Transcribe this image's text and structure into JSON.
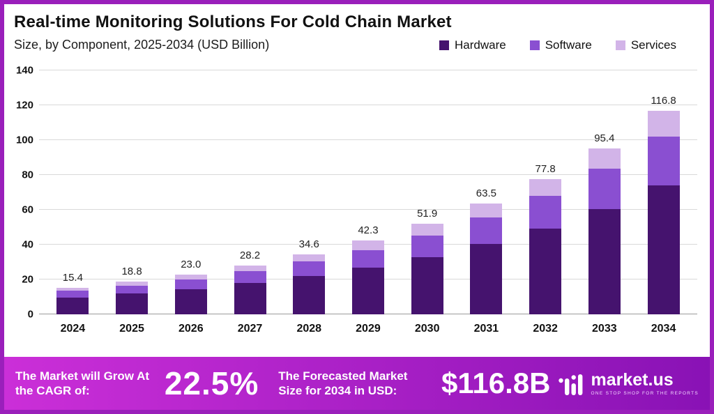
{
  "chart_data": {
    "type": "bar",
    "stacked": true,
    "title": "Real-time Monitoring Solutions For Cold Chain Market",
    "subtitle": "Size, by Component, 2025-2034 (USD Billion)",
    "categories": [
      "2024",
      "2025",
      "2026",
      "2027",
      "2028",
      "2029",
      "2030",
      "2031",
      "2032",
      "2033",
      "2034"
    ],
    "totals": [
      15.4,
      18.8,
      23.0,
      28.2,
      34.6,
      42.3,
      51.9,
      63.5,
      77.8,
      95.4,
      116.8
    ],
    "series": [
      {
        "name": "Hardware",
        "color": "#45136e",
        "values": [
          9.8,
          11.9,
          14.6,
          17.9,
          22.0,
          26.9,
          33.0,
          40.3,
          49.4,
          60.6,
          74.2
        ]
      },
      {
        "name": "Software",
        "color": "#8a4fd1",
        "values": [
          3.7,
          4.5,
          5.5,
          6.8,
          8.3,
          10.1,
          12.4,
          15.2,
          18.7,
          22.9,
          28.0
        ]
      },
      {
        "name": "Services",
        "color": "#d2b4e8",
        "values": [
          1.9,
          2.4,
          2.9,
          3.5,
          4.3,
          5.3,
          6.5,
          8.0,
          9.7,
          11.9,
          14.6
        ]
      }
    ],
    "ylim": [
      0,
      140
    ],
    "yticks": [
      0,
      20,
      40,
      60,
      80,
      100,
      120,
      140
    ],
    "grid": true,
    "legend_position": "top-right",
    "value_labels": "stack totals shown above each bar"
  },
  "banner": {
    "cagr_label": "The Market will Grow At the CAGR of:",
    "cagr_value": "22.5%",
    "forecast_label": "The Forecasted Market Size for 2034 in USD:",
    "forecast_value": "$116.8B",
    "brand_name": "market.us",
    "brand_tagline": "ONE STOP SHOP FOR THE REPORTS"
  },
  "colors": {
    "frame_border": "#9a1fbb",
    "banner_gradient_start": "#cb2fd8",
    "banner_gradient_end": "#8912b5"
  }
}
